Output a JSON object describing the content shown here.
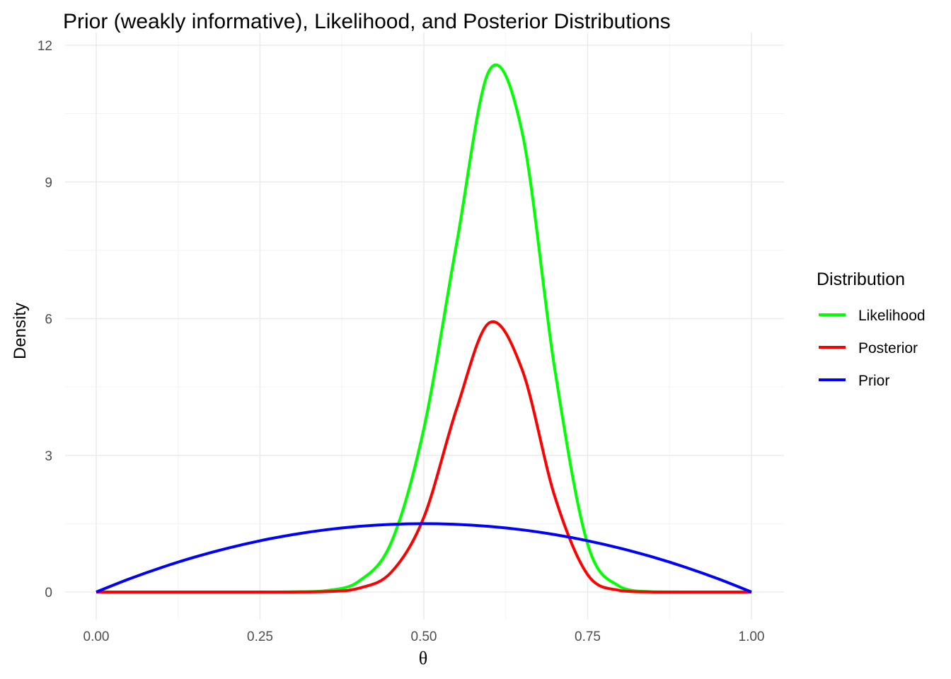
{
  "chart_data": {
    "type": "line",
    "title": "Prior (weakly informative), Likelihood, and Posterior Distributions",
    "xlabel": "θ",
    "ylabel": "Density",
    "xlim": [
      0,
      1
    ],
    "ylim": [
      0,
      12
    ],
    "x_ticks": [
      "0.00",
      "0.25",
      "0.50",
      "0.75",
      "1.00"
    ],
    "y_ticks": [
      "0",
      "3",
      "6",
      "9",
      "12"
    ],
    "grid": true,
    "legend": {
      "title": "Distribution",
      "placement": "right",
      "entries": [
        "Likelihood",
        "Posterior",
        "Prior"
      ]
    },
    "series": [
      {
        "name": "Likelihood",
        "color": "#00ff00",
        "x": [
          0,
          0.25,
          0.3,
          0.35,
          0.4,
          0.45,
          0.5,
          0.55,
          0.6,
          0.65,
          0.7,
          0.75,
          0.8,
          0.85,
          0.9,
          1.0
        ],
        "values": [
          0,
          0,
          0.003,
          0.03,
          0.23,
          1.08,
          3.59,
          7.65,
          11.45,
          10.09,
          4.87,
          1.05,
          0.11,
          0.003,
          0,
          0
        ]
      },
      {
        "name": "Posterior",
        "color": "#ff0000",
        "x": [
          0,
          0.25,
          0.3,
          0.35,
          0.4,
          0.45,
          0.5,
          0.55,
          0.6,
          0.65,
          0.7,
          0.75,
          0.8,
          0.85,
          0.9,
          1.0
        ],
        "values": [
          0,
          0,
          0.001,
          0.01,
          0.08,
          0.43,
          1.64,
          4.02,
          5.91,
          4.88,
          2.09,
          0.38,
          0.03,
          0.001,
          0,
          0
        ]
      },
      {
        "name": "Prior",
        "color": "#0000ff",
        "x": [
          0,
          0.05,
          0.1,
          0.15,
          0.2,
          0.25,
          0.3,
          0.35,
          0.4,
          0.45,
          0.5,
          0.55,
          0.6,
          0.65,
          0.7,
          0.75,
          0.8,
          0.85,
          0.9,
          0.95,
          1.0
        ],
        "values": [
          0,
          0.285,
          0.54,
          0.765,
          0.96,
          1.125,
          1.26,
          1.365,
          1.44,
          1.485,
          1.5,
          1.485,
          1.44,
          1.365,
          1.26,
          1.125,
          0.96,
          0.765,
          0.54,
          0.285,
          0
        ]
      }
    ]
  }
}
